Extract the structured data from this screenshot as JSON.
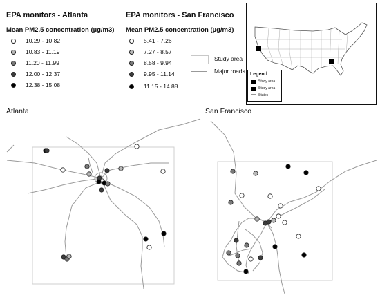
{
  "legend_atlanta": {
    "title": "EPA monitors - Atlanta",
    "subtitle": "Mean PM2.5 concentration (µg/m3)",
    "classes": [
      {
        "label": "10.29 - 10.82",
        "color": "#ffffff"
      },
      {
        "label": "10.83 - 11.19",
        "color": "#b8b8b8"
      },
      {
        "label": "11.20 - 11.99",
        "color": "#7a7a7a"
      },
      {
        "label": "12.00 - 12.37",
        "color": "#3c3c3c"
      },
      {
        "label": "12.38 - 15.08",
        "color": "#000000"
      }
    ]
  },
  "legend_sf": {
    "title": "EPA monitors - San Francisco",
    "subtitle": "Mean PM2.5 concentration (µg/m3)",
    "classes": [
      {
        "label": "5.41 - 7.26",
        "color": "#ffffff"
      },
      {
        "label": "7.27 - 8.57",
        "color": "#b8b8b8"
      },
      {
        "label": "8.58 - 9.94",
        "color": "#7a7a7a"
      },
      {
        "label": "9.95 - 11.14",
        "color": "#3c3c3c"
      },
      {
        "label": "11.15 - 14.88",
        "color": "#000000"
      }
    ]
  },
  "map_legend": {
    "study_area": "Study area",
    "major_roads": "Major roads"
  },
  "inset": {
    "legend_title": "Legend",
    "items": [
      "Study area",
      "Study area",
      "States"
    ]
  },
  "panels": {
    "atlanta_label": "Atlanta",
    "sf_label": "San Francisco"
  }
}
